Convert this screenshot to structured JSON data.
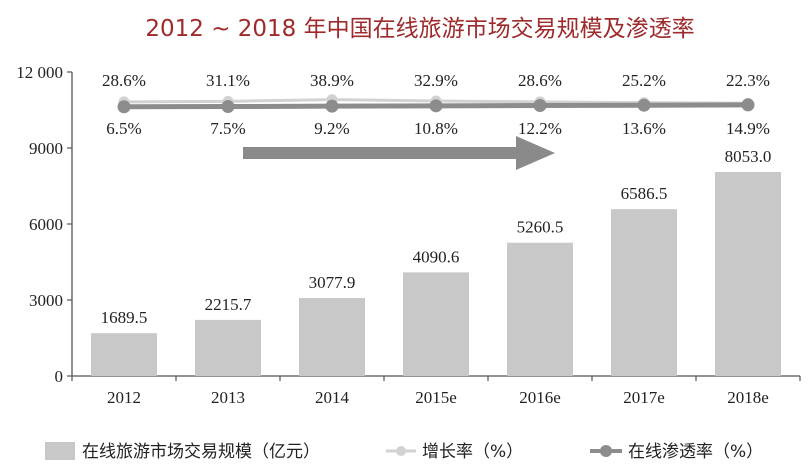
{
  "chart_data": {
    "type": "bar",
    "title": "2012 ~ 2018 年中国在线旅游市场交易规模及渗透率",
    "categories": [
      "2012",
      "2013",
      "2014",
      "2015e",
      "2016e",
      "2017e",
      "2018e"
    ],
    "y_axis": {
      "min": 0,
      "max": 12000,
      "ticks": [
        0,
        3000,
        6000,
        9000,
        12000
      ],
      "tick_labels": [
        "0",
        "3000",
        "6000",
        "9000",
        "12 000"
      ]
    },
    "series": [
      {
        "name": "在线旅游市场交易规模（亿元）",
        "type": "bar",
        "values": [
          1689.5,
          2215.7,
          3077.9,
          4090.6,
          5260.5,
          6586.5,
          8053.0
        ],
        "labels": [
          "1689.5",
          "2215.7",
          "3077.9",
          "4090.6",
          "5260.5",
          "6586.5",
          "8053.0"
        ],
        "color": "#c8c8c8"
      },
      {
        "name": "增长率（%）",
        "type": "line",
        "values": [
          28.6,
          31.1,
          38.9,
          32.9,
          28.6,
          25.2,
          22.3
        ],
        "labels": [
          "28.6%",
          "31.1%",
          "38.9%",
          "32.9%",
          "28.6%",
          "25.2%",
          "22.3%"
        ],
        "color": "#d2d2d2"
      },
      {
        "name": "在线渗透率（%）",
        "type": "line",
        "values": [
          6.5,
          7.5,
          9.2,
          10.8,
          12.2,
          13.6,
          14.9
        ],
        "labels": [
          "6.5%",
          "7.5%",
          "9.2%",
          "10.8%",
          "12.2%",
          "13.6%",
          "14.9%"
        ],
        "color": "#8c8c8c"
      }
    ],
    "legend_position": "bottom",
    "grid": false,
    "colors": {
      "title": "#9e2a2b",
      "axis": "#555555",
      "arrow": "#8a8a8a",
      "text": "#222222"
    }
  }
}
